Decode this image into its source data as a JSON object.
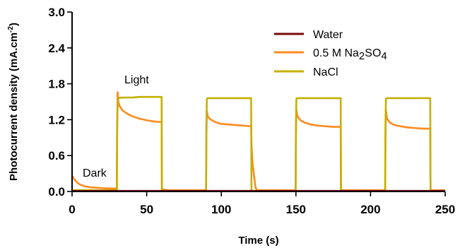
{
  "chart_data": {
    "type": "line",
    "title": "",
    "xlabel": "Time (s)",
    "ylabel": "Photocurrent density (mA.cm",
    "ylabel_sup": "-2",
    "ylabel_suffix": ")",
    "xlim": [
      0,
      250
    ],
    "ylim": [
      0,
      3.0
    ],
    "x_ticks": [
      0,
      50,
      100,
      150,
      200,
      250
    ],
    "y_ticks": [
      0.0,
      0.6,
      1.2,
      1.8,
      2.4,
      3.0
    ],
    "y_tick_labels": [
      "0.0",
      "0.6",
      "1.2",
      "1.8",
      "2.4",
      "3.0"
    ],
    "grid": false,
    "legend_position": "top-right",
    "legend": [
      {
        "label": "Water",
        "color": "#7a0a0a"
      },
      {
        "label_parts": [
          "0.5 M Na",
          "2",
          "SO",
          "4"
        ],
        "label": "0.5 M Na2SO4",
        "color": "#ff8a1e"
      },
      {
        "label": "NaCl",
        "color": "#c4b000"
      }
    ],
    "annotations": [
      {
        "text": "Light",
        "x": 29,
        "y": 1.88
      },
      {
        "text": "Dark",
        "x": 5,
        "y": 0.2
      }
    ],
    "series": [
      {
        "name": "Water",
        "color": "#7a0a0a",
        "x": [
          0,
          250
        ],
        "y": [
          0.01,
          0.01
        ]
      },
      {
        "name": "0.5 M Na2SO4",
        "color": "#ff8a1e",
        "x": [
          0,
          1,
          3,
          5,
          8,
          12,
          18,
          25,
          30,
          30.2,
          30.5,
          31,
          32,
          34,
          37,
          40,
          45,
          50,
          55,
          60,
          60.2,
          61,
          65,
          70,
          80,
          89.8,
          90,
          90.3,
          91,
          93,
          96,
          100,
          105,
          110,
          115,
          120,
          120.3,
          121,
          122,
          123,
          124,
          125,
          130,
          140,
          149.8,
          150,
          150.3,
          151,
          153,
          156,
          160,
          165,
          170,
          175,
          180,
          180.2,
          181,
          190,
          200,
          209.8,
          210,
          210.3,
          211,
          213,
          216,
          220,
          225,
          230,
          235,
          240,
          240.2,
          241,
          250
        ],
        "y": [
          0.26,
          0.22,
          0.16,
          0.12,
          0.09,
          0.07,
          0.06,
          0.05,
          0.05,
          0.95,
          1.66,
          1.5,
          1.42,
          1.35,
          1.3,
          1.26,
          1.22,
          1.19,
          1.17,
          1.16,
          0.05,
          0.03,
          0.02,
          0.02,
          0.02,
          0.02,
          0.9,
          1.34,
          1.25,
          1.2,
          1.16,
          1.13,
          1.12,
          1.11,
          1.1,
          1.09,
          0.75,
          0.45,
          0.25,
          0.06,
          0.02,
          0.02,
          0.02,
          0.02,
          0.02,
          0.9,
          1.37,
          1.26,
          1.19,
          1.15,
          1.12,
          1.1,
          1.09,
          1.08,
          1.08,
          0.03,
          0.02,
          0.02,
          0.02,
          0.02,
          0.9,
          1.36,
          1.22,
          1.15,
          1.11,
          1.09,
          1.07,
          1.06,
          1.05,
          1.05,
          0.03,
          0.02,
          0.02
        ]
      },
      {
        "name": "NaCl",
        "color": "#c4b000",
        "x": [
          0,
          30,
          30.2,
          30.6,
          31.2,
          33,
          36,
          40,
          45,
          50,
          55,
          60,
          60.2,
          61,
          70,
          80,
          89.8,
          90,
          90.3,
          91,
          94,
          100,
          110,
          120,
          120.2,
          121,
          130,
          140,
          149.8,
          150,
          150.3,
          151,
          154,
          160,
          170,
          180,
          180.2,
          181,
          190,
          200,
          209.8,
          210,
          210.3,
          211,
          214,
          220,
          230,
          240,
          240.2,
          241,
          250
        ],
        "y": [
          0.02,
          0.02,
          1.1,
          1.52,
          1.56,
          1.57,
          1.57,
          1.57,
          1.58,
          1.58,
          1.58,
          1.58,
          0.02,
          0.01,
          0.01,
          0.01,
          0.01,
          1.1,
          1.55,
          1.56,
          1.56,
          1.56,
          1.56,
          1.56,
          0.02,
          0.01,
          0.01,
          0.01,
          0.01,
          1.1,
          1.55,
          1.56,
          1.56,
          1.56,
          1.56,
          1.56,
          0.02,
          0.01,
          0.01,
          0.01,
          0.01,
          1.1,
          1.55,
          1.56,
          1.56,
          1.56,
          1.56,
          1.56,
          0.02,
          0.01,
          0.01
        ]
      }
    ]
  }
}
